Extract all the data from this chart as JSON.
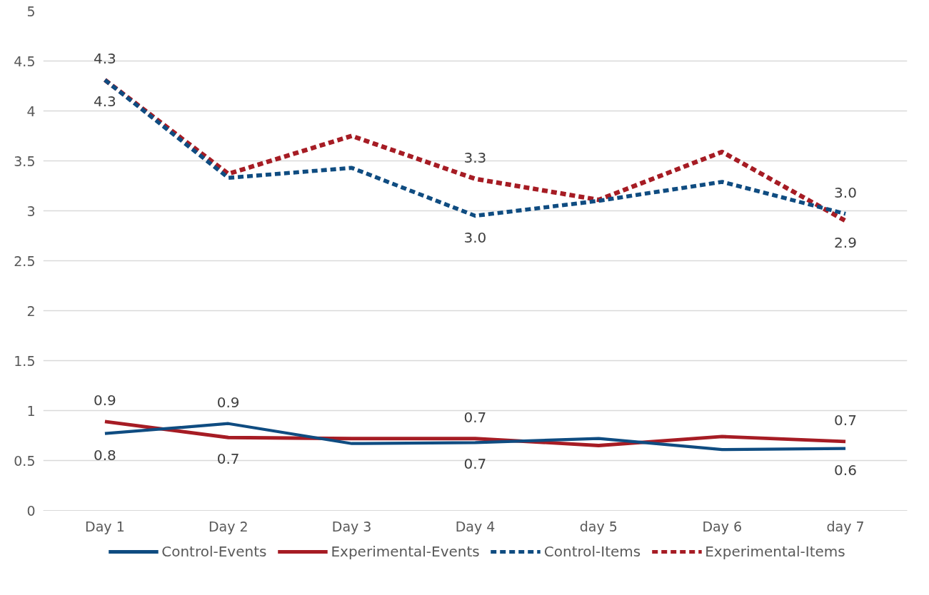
{
  "chart_data": {
    "type": "line",
    "categories": [
      "Day 1",
      "Day 2",
      "Day 3",
      "Day 4",
      "day 5",
      "Day 6",
      "day 7"
    ],
    "ylim": [
      0,
      5
    ],
    "yticks": [
      0,
      0.5,
      1,
      1.5,
      2,
      2.5,
      3,
      3.5,
      4,
      4.5,
      5
    ],
    "grid": "y",
    "legend": "bottom",
    "marker": "none",
    "series": [
      {
        "name": "Control-Events",
        "color": "#0f4c81",
        "line_style": "solid",
        "values": [
          0.77,
          0.87,
          0.67,
          0.68,
          0.72,
          0.61,
          0.62
        ],
        "value_labels": [
          "0.8",
          "0.9",
          null,
          "0.7",
          null,
          null,
          "0.6"
        ]
      },
      {
        "name": "Experimental-Events",
        "color": "#a61c24",
        "line_style": "solid",
        "values": [
          0.89,
          0.73,
          0.72,
          0.72,
          0.65,
          0.74,
          0.69
        ],
        "value_labels": [
          "0.9",
          "0.7",
          null,
          "0.7",
          null,
          null,
          "0.7"
        ]
      },
      {
        "name": "Control-Items",
        "color": "#0f4c81",
        "line_style": "dashed",
        "values": [
          4.31,
          3.33,
          3.43,
          2.95,
          3.1,
          3.29,
          2.97
        ],
        "value_labels": [
          "4.3",
          null,
          null,
          "3.0",
          null,
          null,
          "3.0"
        ]
      },
      {
        "name": "Experimental-Items",
        "color": "#a61c24",
        "line_style": "dashed",
        "values": [
          4.31,
          3.37,
          3.75,
          3.32,
          3.11,
          3.59,
          2.9
        ],
        "value_labels": [
          "4.3",
          null,
          null,
          "3.3",
          null,
          null,
          "2.9"
        ]
      }
    ]
  }
}
